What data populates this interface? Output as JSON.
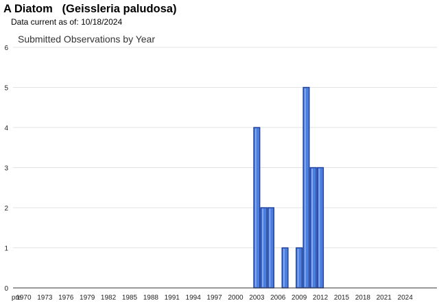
{
  "header": {
    "species_title": "A Diatom   (Geissleria paludosa)",
    "currency_label": "Data current as of:",
    "currency_date": "10/18/2024"
  },
  "chart_data": {
    "type": "bar",
    "title": "Submitted Observations by Year",
    "xlabel": "",
    "ylabel": "",
    "ylim": [
      0,
      6
    ],
    "yticks": [
      0,
      1,
      2,
      3,
      4,
      5,
      6
    ],
    "x_tick_labels": [
      "pre",
      "1970",
      "1973",
      "1976",
      "1979",
      "1982",
      "1985",
      "1988",
      "1991",
      "1994",
      "1997",
      "2000",
      "2003",
      "2006",
      "2009",
      "2012",
      "2015",
      "2018",
      "2021",
      "2024"
    ],
    "categories": [
      "pre",
      "1970",
      "1971",
      "1972",
      "1973",
      "1974",
      "1975",
      "1976",
      "1977",
      "1978",
      "1979",
      "1980",
      "1981",
      "1982",
      "1983",
      "1984",
      "1985",
      "1986",
      "1987",
      "1988",
      "1989",
      "1990",
      "1991",
      "1992",
      "1993",
      "1994",
      "1995",
      "1996",
      "1997",
      "1998",
      "1999",
      "2000",
      "2001",
      "2002",
      "2003",
      "2004",
      "2005",
      "2006",
      "2007",
      "2008",
      "2009",
      "2010",
      "2011",
      "2012",
      "2013",
      "2014",
      "2015",
      "2016",
      "2017",
      "2018",
      "2019",
      "2020",
      "2021",
      "2022",
      "2023",
      "2024"
    ],
    "values": [
      0,
      0,
      0,
      0,
      0,
      0,
      0,
      0,
      0,
      0,
      0,
      0,
      0,
      0,
      0,
      0,
      0,
      0,
      0,
      0,
      0,
      0,
      0,
      0,
      0,
      0,
      0,
      0,
      0,
      0,
      0,
      0,
      0,
      0,
      4,
      2,
      2,
      0,
      1,
      0,
      1,
      5,
      3,
      3,
      0,
      0,
      0,
      0,
      0,
      0,
      0,
      0,
      0,
      0,
      0,
      0
    ],
    "grid": true,
    "legend": "none",
    "bar_color": "#4a7fe0",
    "bar_border_color": "#1f3f9a",
    "grid_color": "#e3e3e3"
  }
}
